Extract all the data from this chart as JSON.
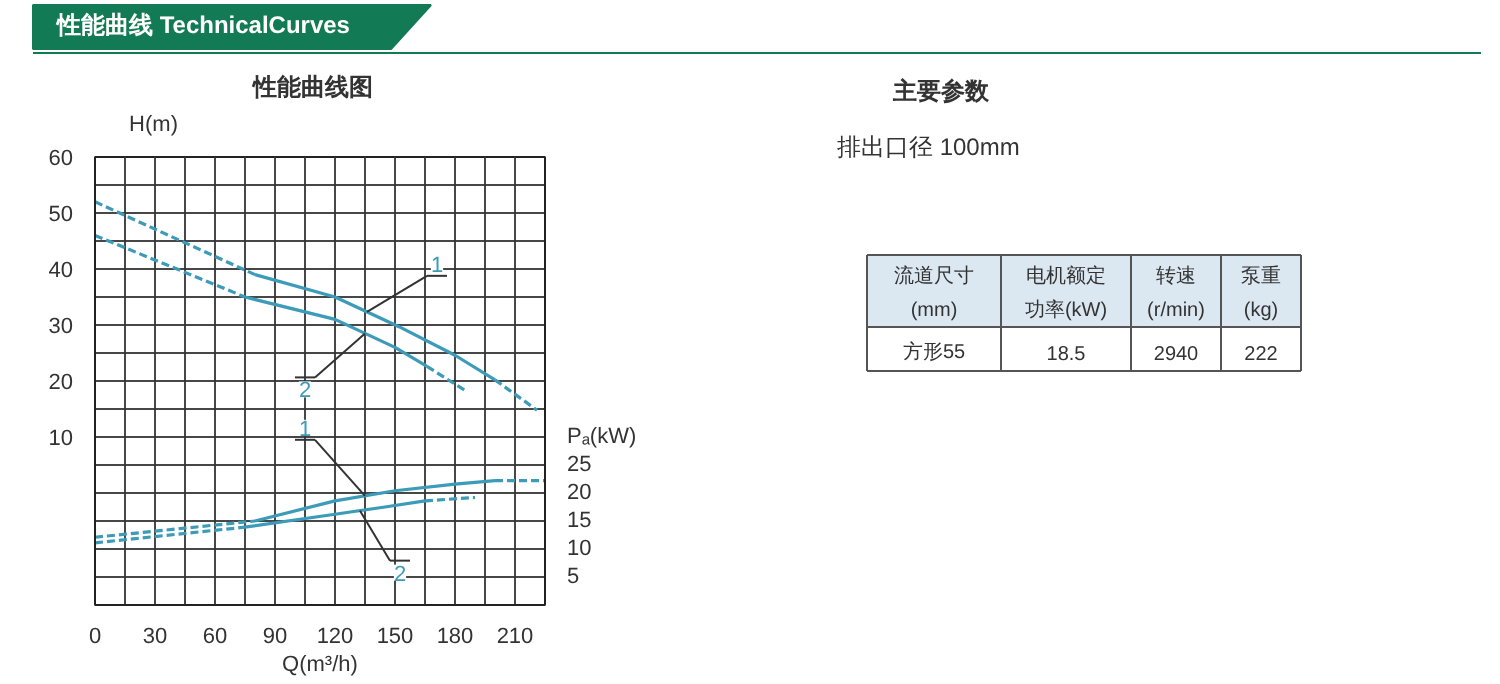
{
  "chart_data": [
    {
      "type": "other",
      "title": "性能曲线 TechnicalCurves"
    },
    {
      "type": "line",
      "title": "性能曲线图",
      "xlabel": "Q(m³/h)",
      "ylabel": "H(m)",
      "y2label": "Pₐ(kW)",
      "xlim": [
        0,
        225
      ],
      "xticks": [
        0,
        {
          "value": 15,
          "label": null
        },
        30,
        {
          "value": 45,
          "label": null
        },
        60,
        {
          "value": 75,
          "label": null
        },
        90,
        {
          "value": 105,
          "label": null
        },
        120,
        {
          "value": 135,
          "label": null
        },
        150,
        {
          "value": 165,
          "label": null
        },
        180,
        {
          "value": 195,
          "label": null
        },
        210
      ],
      "ylim": [
        -20,
        60
      ],
      "yticks": [
        {
          "value": -20,
          "label": null
        },
        {
          "value": -15,
          "label": null
        },
        {
          "value": -10,
          "label": null
        },
        {
          "value": -5,
          "label": null
        },
        {
          "value": 0,
          "label": null
        },
        {
          "value": 5,
          "label": null
        },
        10,
        {
          "value": 15,
          "label": null
        },
        20,
        {
          "value": 25,
          "label": null
        },
        30,
        {
          "value": 35,
          "label": null
        },
        40,
        {
          "value": 45,
          "label": null
        },
        50,
        {
          "value": 55,
          "label": null
        },
        60
      ],
      "y2lim": [
        0,
        80
      ],
      "y2ticks": [
        5,
        10,
        15,
        20,
        25
      ],
      "grid": true,
      "series": [
        {
          "color": "#3b9bb8",
          "line_style": "dashed",
          "x": [
            0,
            80
          ],
          "values": [
            52,
            39
          ]
        },
        {
          "name": "1",
          "color": "#3b9bb8",
          "line_style": "solid",
          "x": [
            80,
            120,
            152,
            180,
            200
          ],
          "values": [
            39,
            35,
            29.7,
            24.6,
            20.2
          ]
        },
        {
          "color": "#3b9bb8",
          "line_style": "dashed",
          "x": [
            200,
            221
          ],
          "values": [
            20.2,
            14.8
          ]
        },
        {
          "color": "#3b9bb8",
          "line_style": "dashed",
          "x": [
            0,
            75
          ],
          "values": [
            46,
            35
          ]
        },
        {
          "name": "2",
          "color": "#3b9bb8",
          "line_style": "solid",
          "x": [
            75,
            120,
            150,
            166
          ],
          "values": [
            35,
            31,
            26,
            22.6
          ]
        },
        {
          "color": "#3b9bb8",
          "line_style": "dashed",
          "x": [
            166,
            186
          ],
          "values": [
            22.6,
            18.1
          ]
        },
        {
          "color": "#3b9bb8",
          "line_style": "dashed",
          "axis": "y2",
          "x": [
            0,
            80
          ],
          "values": [
            12.1,
            15
          ]
        },
        {
          "name": "1",
          "color": "#3b9bb8",
          "line_style": "solid",
          "axis": "y2",
          "x": [
            80,
            120,
            150,
            180,
            200
          ],
          "values": [
            15,
            18.6,
            20.4,
            21.6,
            22.2
          ]
        },
        {
          "color": "#3b9bb8",
          "line_style": "dashed",
          "axis": "y2",
          "x": [
            200,
            225
          ],
          "values": [
            22.2,
            22.2
          ]
        },
        {
          "color": "#3b9bb8",
          "line_style": "dashed",
          "axis": "y2",
          "x": [
            0,
            75
          ],
          "values": [
            11.1,
            13.9
          ]
        },
        {
          "name": "2",
          "color": "#3b9bb8",
          "line_style": "solid",
          "axis": "y2",
          "x": [
            75,
            120,
            145,
            165
          ],
          "values": [
            13.9,
            16.2,
            17.5,
            18.6
          ]
        },
        {
          "color": "#3b9bb8",
          "line_style": "dashed",
          "axis": "y2",
          "x": [
            165,
            190
          ],
          "values": [
            18.6,
            19.2
          ]
        }
      ]
    },
    {
      "type": "other",
      "title": "主要参数",
      "annotations": [
        "排出口径    100mm",
        "流道尺寸",
        "电机额定",
        "转速",
        "泵重",
        "(mm)",
        "功率(kW)",
        "(r/min)",
        "(kg)",
        "方形55",
        "18.5",
        "2940",
        "222"
      ]
    }
  ]
}
